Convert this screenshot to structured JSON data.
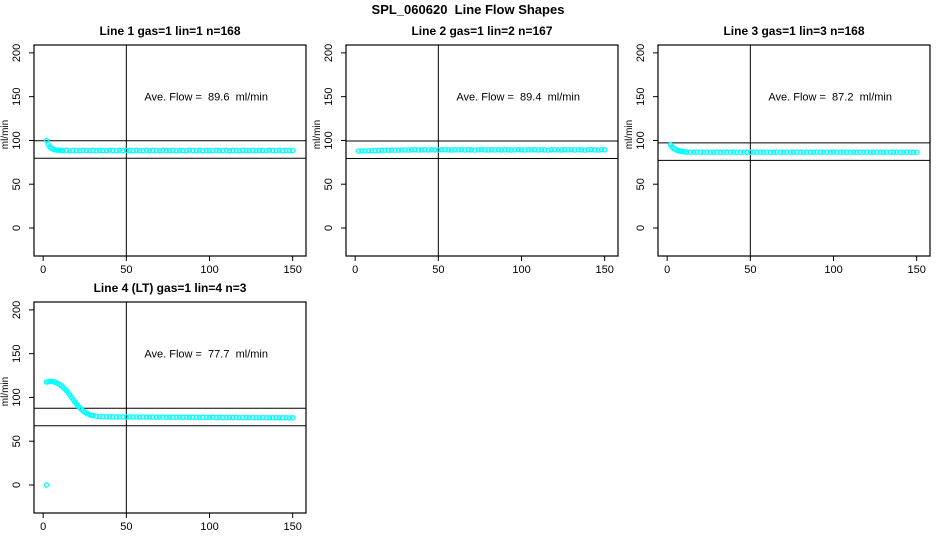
{
  "page_title": "SPL_060620  Line Flow Shapes",
  "colors": {
    "point": "#00ffff",
    "axis": "#000000",
    "text": "#000000",
    "background": "#ffffff"
  },
  "chart_data": [
    {
      "type": "scatter",
      "title": "Line 1 gas=1 lin=1 n=168",
      "annotation": "Ave. Flow =  89.6  ml/min",
      "annotation_pos": [
        98,
        150
      ],
      "xlabel": "",
      "ylabel": "ml/min",
      "xlim": [
        -5.5,
        158
      ],
      "ylim": [
        -32,
        209
      ],
      "xticks": [
        0,
        50,
        100,
        150
      ],
      "yticks": [
        0,
        50,
        100,
        150,
        200
      ],
      "vline_x": 50,
      "hlines_y": [
        99.6,
        79.6
      ],
      "marker": "open-circle",
      "ave_flow_ml_min": 89.6,
      "points": [
        [
          2,
          100.0
        ],
        [
          3,
          95.5
        ],
        [
          4,
          92.7
        ],
        [
          5,
          91.1
        ],
        [
          6,
          90.1
        ],
        [
          7,
          89.4
        ],
        [
          8,
          89.0
        ],
        [
          9,
          88.9
        ],
        [
          10,
          88.7
        ],
        [
          11,
          88.6
        ],
        [
          12,
          88.4
        ],
        [
          14,
          88.7
        ],
        [
          16,
          88.2
        ],
        [
          18,
          88.6
        ],
        [
          20,
          88.5
        ],
        [
          22,
          88.3
        ],
        [
          24,
          88.8
        ],
        [
          26,
          88.5
        ],
        [
          28,
          88.4
        ],
        [
          30,
          88.7
        ],
        [
          32,
          88.2
        ],
        [
          34,
          88.6
        ],
        [
          36,
          88.5
        ],
        [
          38,
          88.3
        ],
        [
          40,
          88.8
        ],
        [
          42,
          88.5
        ],
        [
          44,
          88.4
        ],
        [
          46,
          88.7
        ],
        [
          48,
          88.2
        ],
        [
          50,
          88.6
        ],
        [
          52,
          88.5
        ],
        [
          54,
          88.3
        ],
        [
          56,
          88.8
        ],
        [
          58,
          88.5
        ],
        [
          60,
          88.4
        ],
        [
          62,
          88.7
        ],
        [
          64,
          88.2
        ],
        [
          66,
          88.6
        ],
        [
          68,
          88.5
        ],
        [
          70,
          88.3
        ],
        [
          72,
          88.8
        ],
        [
          74,
          88.5
        ],
        [
          76,
          88.4
        ],
        [
          78,
          88.7
        ],
        [
          80,
          88.2
        ],
        [
          82,
          88.6
        ],
        [
          84,
          88.5
        ],
        [
          86,
          88.3
        ],
        [
          88,
          88.8
        ],
        [
          90,
          88.5
        ],
        [
          92,
          88.4
        ],
        [
          94,
          88.7
        ],
        [
          96,
          88.2
        ],
        [
          98,
          88.6
        ],
        [
          100,
          88.5
        ],
        [
          102,
          88.3
        ],
        [
          104,
          88.8
        ],
        [
          106,
          88.5
        ],
        [
          108,
          88.4
        ],
        [
          110,
          88.7
        ],
        [
          112,
          88.2
        ],
        [
          114,
          88.6
        ],
        [
          116,
          88.5
        ],
        [
          118,
          88.3
        ],
        [
          120,
          88.8
        ],
        [
          122,
          88.5
        ],
        [
          124,
          88.4
        ],
        [
          126,
          88.7
        ],
        [
          128,
          88.2
        ],
        [
          130,
          88.6
        ],
        [
          132,
          88.5
        ],
        [
          134,
          88.3
        ],
        [
          136,
          88.8
        ],
        [
          138,
          88.5
        ],
        [
          140,
          88.4
        ],
        [
          142,
          88.7
        ],
        [
          144,
          88.2
        ],
        [
          146,
          88.6
        ],
        [
          148,
          88.5
        ],
        [
          150,
          88.4
        ]
      ]
    },
    {
      "type": "scatter",
      "title": "Line 2 gas=1 lin=2 n=167",
      "annotation": "Ave. Flow =  89.4  ml/min",
      "annotation_pos": [
        98,
        150
      ],
      "xlabel": "",
      "ylabel": "ml/min",
      "xlim": [
        -5.5,
        158
      ],
      "ylim": [
        -32,
        209
      ],
      "xticks": [
        0,
        50,
        100,
        150
      ],
      "yticks": [
        0,
        50,
        100,
        150,
        200
      ],
      "vline_x": 50,
      "hlines_y": [
        99.4,
        79.4
      ],
      "marker": "open-circle",
      "ave_flow_ml_min": 89.4,
      "points": [
        [
          2,
          87.8
        ],
        [
          4,
          88.0
        ],
        [
          6,
          88.1
        ],
        [
          8,
          88.3
        ],
        [
          10,
          88.4
        ],
        [
          12,
          88.5
        ],
        [
          14,
          88.6
        ],
        [
          16,
          88.7
        ],
        [
          18,
          88.8
        ],
        [
          20,
          88.8
        ],
        [
          22,
          88.9
        ],
        [
          24,
          89.0
        ],
        [
          26,
          89.0
        ],
        [
          28,
          89.1
        ],
        [
          30,
          89.1
        ],
        [
          32,
          89.0
        ],
        [
          34,
          89.2
        ],
        [
          36,
          89.3
        ],
        [
          38,
          89.1
        ],
        [
          40,
          89.2
        ],
        [
          42,
          89.4
        ],
        [
          44,
          89.1
        ],
        [
          46,
          89.3
        ],
        [
          48,
          89.2
        ],
        [
          50,
          89.0
        ],
        [
          52,
          89.3
        ],
        [
          54,
          89.4
        ],
        [
          56,
          89.2
        ],
        [
          58,
          89.1
        ],
        [
          60,
          89.3
        ],
        [
          62,
          89.2
        ],
        [
          64,
          89.4
        ],
        [
          66,
          89.1
        ],
        [
          68,
          89.3
        ],
        [
          70,
          89.2
        ],
        [
          72,
          89.0
        ],
        [
          74,
          89.3
        ],
        [
          76,
          89.4
        ],
        [
          78,
          89.2
        ],
        [
          80,
          89.1
        ],
        [
          82,
          89.3
        ],
        [
          84,
          89.2
        ],
        [
          86,
          89.4
        ],
        [
          88,
          89.1
        ],
        [
          90,
          89.3
        ],
        [
          92,
          89.2
        ],
        [
          94,
          89.0
        ],
        [
          96,
          89.3
        ],
        [
          98,
          89.4
        ],
        [
          100,
          89.2
        ],
        [
          102,
          89.1
        ],
        [
          104,
          89.3
        ],
        [
          106,
          89.2
        ],
        [
          108,
          89.4
        ],
        [
          110,
          89.1
        ],
        [
          112,
          89.3
        ],
        [
          114,
          89.2
        ],
        [
          116,
          89.0
        ],
        [
          118,
          89.3
        ],
        [
          120,
          89.4
        ],
        [
          122,
          89.2
        ],
        [
          124,
          89.1
        ],
        [
          126,
          89.3
        ],
        [
          128,
          89.2
        ],
        [
          130,
          89.4
        ],
        [
          132,
          89.1
        ],
        [
          134,
          89.3
        ],
        [
          136,
          89.2
        ],
        [
          138,
          89.0
        ],
        [
          140,
          89.3
        ],
        [
          142,
          89.4
        ],
        [
          144,
          89.2
        ],
        [
          146,
          89.1
        ],
        [
          148,
          89.3
        ],
        [
          150,
          89.2
        ]
      ]
    },
    {
      "type": "scatter",
      "title": "Line 3 gas=1 lin=3 n=168",
      "annotation": "Ave. Flow =  87.2  ml/min",
      "annotation_pos": [
        98,
        150
      ],
      "xlabel": "",
      "ylabel": "ml/min",
      "xlim": [
        -5.5,
        158
      ],
      "ylim": [
        -32,
        209
      ],
      "xticks": [
        0,
        50,
        100,
        150
      ],
      "yticks": [
        0,
        50,
        100,
        150,
        200
      ],
      "vline_x": 50,
      "hlines_y": [
        97.2,
        77.2
      ],
      "marker": "open-circle",
      "ave_flow_ml_min": 87.2,
      "points": [
        [
          2,
          95.0
        ],
        [
          3,
          92.6
        ],
        [
          4,
          90.9
        ],
        [
          5,
          89.6
        ],
        [
          6,
          88.7
        ],
        [
          7,
          88.0
        ],
        [
          8,
          87.6
        ],
        [
          9,
          87.3
        ],
        [
          10,
          87.1
        ],
        [
          11,
          86.9
        ],
        [
          12,
          86.8
        ],
        [
          14,
          86.7
        ],
        [
          16,
          86.5
        ],
        [
          18,
          86.8
        ],
        [
          20,
          86.6
        ],
        [
          22,
          86.4
        ],
        [
          24,
          86.7
        ],
        [
          26,
          86.6
        ],
        [
          28,
          86.5
        ],
        [
          30,
          86.8
        ],
        [
          32,
          86.4
        ],
        [
          34,
          86.7
        ],
        [
          36,
          86.6
        ],
        [
          38,
          86.5
        ],
        [
          40,
          86.8
        ],
        [
          42,
          86.6
        ],
        [
          44,
          86.4
        ],
        [
          46,
          86.7
        ],
        [
          48,
          86.5
        ],
        [
          50,
          86.6
        ],
        [
          52,
          86.8
        ],
        [
          54,
          86.5
        ],
        [
          56,
          86.6
        ],
        [
          58,
          86.4
        ],
        [
          60,
          86.7
        ],
        [
          62,
          86.6
        ],
        [
          64,
          86.5
        ],
        [
          66,
          86.8
        ],
        [
          68,
          86.6
        ],
        [
          70,
          86.4
        ],
        [
          72,
          86.7
        ],
        [
          74,
          86.6
        ],
        [
          76,
          86.5
        ],
        [
          78,
          86.8
        ],
        [
          80,
          86.4
        ],
        [
          82,
          86.6
        ],
        [
          84,
          86.7
        ],
        [
          86,
          86.5
        ],
        [
          88,
          86.6
        ],
        [
          90,
          86.8
        ],
        [
          92,
          86.4
        ],
        [
          94,
          86.7
        ],
        [
          96,
          86.6
        ],
        [
          98,
          86.5
        ],
        [
          100,
          86.8
        ],
        [
          102,
          86.6
        ],
        [
          104,
          86.4
        ],
        [
          106,
          86.7
        ],
        [
          108,
          86.5
        ],
        [
          110,
          86.6
        ],
        [
          112,
          86.8
        ],
        [
          114,
          86.5
        ],
        [
          116,
          86.6
        ],
        [
          118,
          86.4
        ],
        [
          120,
          86.7
        ],
        [
          122,
          86.6
        ],
        [
          124,
          86.5
        ],
        [
          126,
          86.8
        ],
        [
          128,
          86.6
        ],
        [
          130,
          86.4
        ],
        [
          132,
          86.7
        ],
        [
          134,
          86.6
        ],
        [
          136,
          86.5
        ],
        [
          138,
          86.8
        ],
        [
          140,
          86.4
        ],
        [
          142,
          86.6
        ],
        [
          144,
          86.7
        ],
        [
          146,
          86.5
        ],
        [
          148,
          86.6
        ],
        [
          150,
          86.5
        ]
      ]
    },
    {
      "type": "scatter",
      "title": "Line 4 (LT) gas=1 lin=4 n=3",
      "annotation": "Ave. Flow =  77.7  ml/min",
      "annotation_pos": [
        98,
        150
      ],
      "xlabel": "",
      "ylabel": "ml/min",
      "xlim": [
        -5.5,
        158
      ],
      "ylim": [
        -32,
        209
      ],
      "xticks": [
        0,
        50,
        100,
        150
      ],
      "yticks": [
        0,
        50,
        100,
        150,
        200
      ],
      "vline_x": 50,
      "hlines_y": [
        87.7,
        67.7
      ],
      "marker": "open-circle",
      "ave_flow_ml_min": 77.7,
      "points": [
        [
          2,
          0
        ],
        [
          2,
          117.5
        ],
        [
          3,
          118.0
        ],
        [
          4,
          118.2
        ],
        [
          5,
          118.3
        ],
        [
          6,
          118.0
        ],
        [
          7,
          117.5
        ],
        [
          8,
          116.8
        ],
        [
          9,
          115.9
        ],
        [
          10,
          114.7
        ],
        [
          11,
          113.3
        ],
        [
          12,
          111.7
        ],
        [
          13,
          109.8
        ],
        [
          14,
          107.7
        ],
        [
          15,
          105.4
        ],
        [
          16,
          102.9
        ],
        [
          17,
          100.3
        ],
        [
          18,
          97.7
        ],
        [
          19,
          95.1
        ],
        [
          20,
          92.6
        ],
        [
          21,
          90.3
        ],
        [
          22,
          88.2
        ],
        [
          23,
          86.3
        ],
        [
          24,
          84.7
        ],
        [
          25,
          83.3
        ],
        [
          26,
          82.1
        ],
        [
          27,
          81.1
        ],
        [
          28,
          80.3
        ],
        [
          29,
          79.7
        ],
        [
          30,
          79.2
        ],
        [
          32,
          78.6
        ],
        [
          34,
          78.2
        ],
        [
          36,
          78.0
        ],
        [
          38,
          77.9
        ],
        [
          40,
          77.8
        ],
        [
          42,
          77.9
        ],
        [
          44,
          77.7
        ],
        [
          46,
          77.8
        ],
        [
          48,
          77.6
        ],
        [
          50,
          77.7
        ],
        [
          52,
          77.8
        ],
        [
          54,
          77.6
        ],
        [
          56,
          77.7
        ],
        [
          58,
          77.5
        ],
        [
          60,
          77.6
        ],
        [
          62,
          77.7
        ],
        [
          64,
          77.5
        ],
        [
          66,
          77.6
        ],
        [
          68,
          77.4
        ],
        [
          70,
          77.5
        ],
        [
          72,
          77.6
        ],
        [
          74,
          77.4
        ],
        [
          76,
          77.5
        ],
        [
          78,
          77.3
        ],
        [
          80,
          77.4
        ],
        [
          82,
          77.5
        ],
        [
          84,
          77.3
        ],
        [
          86,
          77.4
        ],
        [
          88,
          77.2
        ],
        [
          90,
          77.3
        ],
        [
          92,
          77.4
        ],
        [
          94,
          77.2
        ],
        [
          96,
          77.3
        ],
        [
          98,
          77.1
        ],
        [
          100,
          77.2
        ],
        [
          102,
          77.3
        ],
        [
          104,
          77.1
        ],
        [
          106,
          77.2
        ],
        [
          108,
          77.0
        ],
        [
          110,
          77.1
        ],
        [
          112,
          77.2
        ],
        [
          114,
          77.0
        ],
        [
          116,
          77.1
        ],
        [
          118,
          76.9
        ],
        [
          120,
          77.0
        ],
        [
          122,
          77.1
        ],
        [
          124,
          76.9
        ],
        [
          126,
          77.0
        ],
        [
          128,
          76.8
        ],
        [
          130,
          76.9
        ],
        [
          132,
          77.0
        ],
        [
          134,
          76.8
        ],
        [
          136,
          76.9
        ],
        [
          138,
          76.7
        ],
        [
          140,
          76.8
        ],
        [
          142,
          76.9
        ],
        [
          144,
          76.7
        ],
        [
          146,
          76.8
        ],
        [
          148,
          76.6
        ],
        [
          150,
          76.7
        ]
      ]
    }
  ]
}
